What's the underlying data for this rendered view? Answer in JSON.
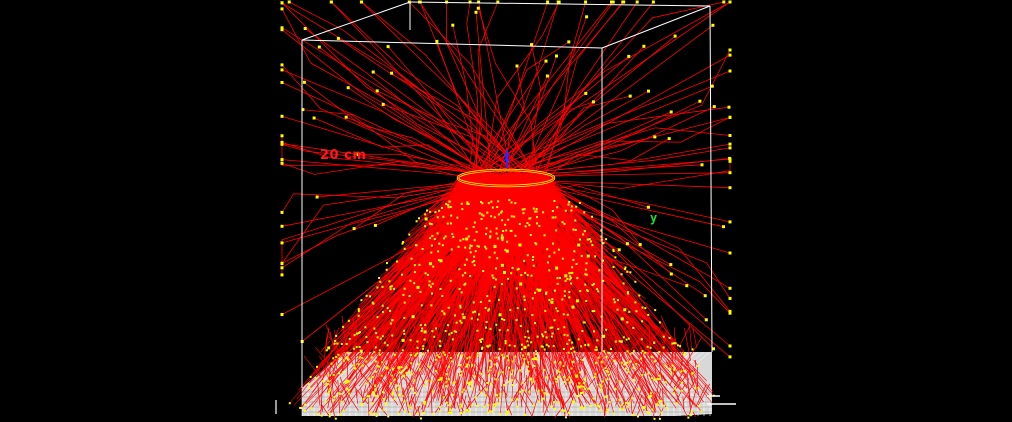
{
  "scene": {
    "background": "#000000",
    "box_color": "#ffffff",
    "trace_color": "#ff0000",
    "endpoint_color": "#ffff00",
    "scale_label": "20 cm",
    "axes": [
      {
        "label": "x",
        "color": "#2a2aff"
      },
      {
        "label": "y",
        "color": "#22dd22"
      }
    ]
  }
}
